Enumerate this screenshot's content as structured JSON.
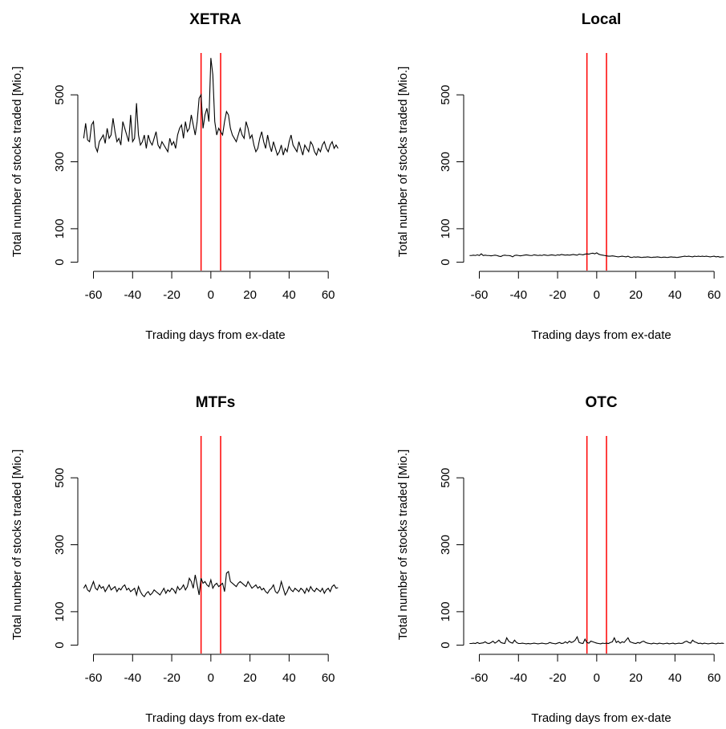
{
  "chart_data": [
    {
      "type": "line",
      "title": "XETRA",
      "x_label": "Trading days from ex-date",
      "y_label": "Total number of stocks traded [Mio.]",
      "x": [
        -65,
        -64,
        -63,
        -62,
        -61,
        -60,
        -59,
        -58,
        -57,
        -56,
        -55,
        -54,
        -53,
        -52,
        -51,
        -50,
        -49,
        -48,
        -47,
        -46,
        -45,
        -44,
        -43,
        -42,
        -41,
        -40,
        -39,
        -38,
        -37,
        -36,
        -35,
        -34,
        -33,
        -32,
        -31,
        -30,
        -29,
        -28,
        -27,
        -26,
        -25,
        -24,
        -23,
        -22,
        -21,
        -20,
        -19,
        -18,
        -17,
        -16,
        -15,
        -14,
        -13,
        -12,
        -11,
        -10,
        -9,
        -8,
        -7,
        -6,
        -5,
        -4,
        -3,
        -2,
        -1,
        0,
        1,
        2,
        3,
        4,
        5,
        6,
        7,
        8,
        9,
        10,
        11,
        12,
        13,
        14,
        15,
        16,
        17,
        18,
        19,
        20,
        21,
        22,
        23,
        24,
        25,
        26,
        27,
        28,
        29,
        30,
        31,
        32,
        33,
        34,
        35,
        36,
        37,
        38,
        39,
        40,
        41,
        42,
        43,
        44,
        45,
        46,
        47,
        48,
        49,
        50,
        51,
        52,
        53,
        54,
        55,
        56,
        57,
        58,
        59,
        60,
        61,
        62,
        63,
        64,
        65
      ],
      "values": [
        370,
        415,
        365,
        360,
        410,
        420,
        345,
        330,
        360,
        370,
        380,
        355,
        400,
        370,
        380,
        430,
        390,
        360,
        370,
        350,
        420,
        400,
        380,
        360,
        440,
        360,
        370,
        475,
        380,
        350,
        360,
        380,
        340,
        380,
        360,
        350,
        370,
        390,
        350,
        340,
        360,
        350,
        340,
        330,
        370,
        350,
        360,
        340,
        380,
        400,
        410,
        370,
        420,
        390,
        400,
        440,
        410,
        380,
        420,
        490,
        500,
        400,
        440,
        460,
        420,
        610,
        560,
        420,
        380,
        400,
        390,
        380,
        420,
        450,
        440,
        400,
        380,
        370,
        360,
        380,
        400,
        380,
        370,
        420,
        400,
        370,
        380,
        350,
        330,
        340,
        370,
        390,
        360,
        340,
        380,
        350,
        330,
        360,
        340,
        320,
        330,
        350,
        320,
        340,
        330,
        360,
        380,
        350,
        340,
        330,
        360,
        340,
        320,
        350,
        340,
        330,
        360,
        350,
        330,
        320,
        340,
        330,
        350,
        360,
        340,
        330,
        350,
        360,
        340,
        350,
        340
      ],
      "color": "#000000",
      "vlines": [
        -5,
        5
      ],
      "vline_color": "#ff0000",
      "xlim": [
        -68,
        71
      ],
      "ylim": [
        -25,
        625
      ],
      "xticks": [
        -60,
        -40,
        -20,
        0,
        20,
        40,
        60
      ],
      "yticks": [
        0,
        100,
        300,
        500
      ]
    },
    {
      "type": "line",
      "title": "Local",
      "x_label": "Trading days from ex-date",
      "y_label": "Total number of stocks traded [Mio.]",
      "x": [
        -65,
        -64,
        -63,
        -62,
        -61,
        -60,
        -59,
        -58,
        -57,
        -56,
        -55,
        -54,
        -53,
        -52,
        -51,
        -50,
        -49,
        -48,
        -47,
        -46,
        -45,
        -44,
        -43,
        -42,
        -41,
        -40,
        -39,
        -38,
        -37,
        -36,
        -35,
        -34,
        -33,
        -32,
        -31,
        -30,
        -29,
        -28,
        -27,
        -26,
        -25,
        -24,
        -23,
        -22,
        -21,
        -20,
        -19,
        -18,
        -17,
        -16,
        -15,
        -14,
        -13,
        -12,
        -11,
        -10,
        -9,
        -8,
        -7,
        -6,
        -5,
        -4,
        -3,
        -2,
        -1,
        0,
        1,
        2,
        3,
        4,
        5,
        6,
        7,
        8,
        9,
        10,
        11,
        12,
        13,
        14,
        15,
        16,
        17,
        18,
        19,
        20,
        21,
        22,
        23,
        24,
        25,
        26,
        27,
        28,
        29,
        30,
        31,
        32,
        33,
        34,
        35,
        36,
        37,
        38,
        39,
        40,
        41,
        42,
        43,
        44,
        45,
        46,
        47,
        48,
        49,
        50,
        51,
        52,
        53,
        54,
        55,
        56,
        57,
        58,
        59,
        60,
        61,
        62,
        63,
        64,
        65
      ],
      "values": [
        20,
        20,
        21,
        20,
        22,
        20,
        25,
        20,
        21,
        20,
        20,
        19,
        20,
        21,
        20,
        18,
        17,
        20,
        21,
        20,
        20,
        19,
        16,
        20,
        21,
        20,
        19,
        20,
        21,
        22,
        21,
        20,
        20,
        22,
        21,
        20,
        21,
        20,
        22,
        21,
        20,
        21,
        22,
        21,
        20,
        22,
        21,
        23,
        22,
        21,
        22,
        21,
        22,
        23,
        22,
        21,
        24,
        23,
        22,
        24,
        25,
        24,
        26,
        27,
        25,
        28,
        24,
        22,
        21,
        20,
        19,
        18,
        18,
        19,
        18,
        17,
        16,
        17,
        18,
        17,
        16,
        18,
        15,
        14,
        16,
        15,
        16,
        15,
        14,
        15,
        15,
        16,
        15,
        14,
        15,
        15,
        16,
        15,
        14,
        15,
        15,
        14,
        15,
        16,
        15,
        15,
        14,
        15,
        16,
        17,
        18,
        17,
        18,
        17,
        16,
        18,
        17,
        18,
        17,
        18,
        17,
        18,
        17,
        16,
        17,
        18,
        16,
        17,
        15,
        16,
        16
      ],
      "color": "#000000",
      "vlines": [
        -5,
        5
      ],
      "vline_color": "#ff0000",
      "xlim": [
        -68,
        71
      ],
      "ylim": [
        -25,
        625
      ],
      "xticks": [
        -60,
        -40,
        -20,
        0,
        20,
        40,
        60
      ],
      "yticks": [
        0,
        100,
        300,
        500
      ]
    },
    {
      "type": "line",
      "title": "MTFs",
      "x_label": "Trading days from ex-date",
      "y_label": "Total number of stocks traded [Mio.]",
      "x": [
        -65,
        -64,
        -63,
        -62,
        -61,
        -60,
        -59,
        -58,
        -57,
        -56,
        -55,
        -54,
        -53,
        -52,
        -51,
        -50,
        -49,
        -48,
        -47,
        -46,
        -45,
        -44,
        -43,
        -42,
        -41,
        -40,
        -39,
        -38,
        -37,
        -36,
        -35,
        -34,
        -33,
        -32,
        -31,
        -30,
        -29,
        -28,
        -27,
        -26,
        -25,
        -24,
        -23,
        -22,
        -21,
        -20,
        -19,
        -18,
        -17,
        -16,
        -15,
        -14,
        -13,
        -12,
        -11,
        -10,
        -9,
        -8,
        -7,
        -6,
        -5,
        -4,
        -3,
        -2,
        -1,
        0,
        1,
        2,
        3,
        4,
        5,
        6,
        7,
        8,
        9,
        10,
        11,
        12,
        13,
        14,
        15,
        16,
        17,
        18,
        19,
        20,
        21,
        22,
        23,
        24,
        25,
        26,
        27,
        28,
        29,
        30,
        31,
        32,
        33,
        34,
        35,
        36,
        37,
        38,
        39,
        40,
        41,
        42,
        43,
        44,
        45,
        46,
        47,
        48,
        49,
        50,
        51,
        52,
        53,
        54,
        55,
        56,
        57,
        58,
        59,
        60,
        61,
        62,
        63,
        64,
        65
      ],
      "values": [
        170,
        180,
        165,
        160,
        175,
        190,
        170,
        165,
        180,
        170,
        175,
        160,
        170,
        180,
        165,
        170,
        175,
        160,
        170,
        165,
        175,
        180,
        165,
        170,
        160,
        165,
        170,
        150,
        175,
        160,
        150,
        145,
        155,
        160,
        150,
        155,
        165,
        160,
        155,
        150,
        160,
        170,
        155,
        165,
        160,
        170,
        165,
        155,
        175,
        165,
        170,
        180,
        165,
        175,
        200,
        190,
        170,
        210,
        180,
        150,
        200,
        185,
        190,
        180,
        175,
        195,
        170,
        180,
        185,
        175,
        180,
        185,
        160,
        215,
        220,
        190,
        185,
        180,
        175,
        185,
        190,
        185,
        180,
        175,
        190,
        180,
        170,
        175,
        180,
        170,
        175,
        165,
        170,
        160,
        155,
        165,
        170,
        180,
        160,
        155,
        165,
        190,
        170,
        150,
        160,
        175,
        165,
        160,
        170,
        165,
        160,
        170,
        165,
        155,
        170,
        160,
        175,
        165,
        160,
        170,
        165,
        160,
        170,
        155,
        165,
        170,
        160,
        175,
        180,
        170,
        172
      ],
      "color": "#000000",
      "vlines": [
        -5,
        5
      ],
      "vline_color": "#ff0000",
      "xlim": [
        -68,
        71
      ],
      "ylim": [
        -25,
        625
      ],
      "xticks": [
        -60,
        -40,
        -20,
        0,
        20,
        40,
        60
      ],
      "yticks": [
        0,
        100,
        300,
        500
      ]
    },
    {
      "type": "line",
      "title": "OTC",
      "x_label": "Trading days from ex-date",
      "y_label": "Total number of stocks traded [Mio.]",
      "x": [
        -65,
        -64,
        -63,
        -62,
        -61,
        -60,
        -59,
        -58,
        -57,
        -56,
        -55,
        -54,
        -53,
        -52,
        -51,
        -50,
        -49,
        -48,
        -47,
        -46,
        -45,
        -44,
        -43,
        -42,
        -41,
        -40,
        -39,
        -38,
        -37,
        -36,
        -35,
        -34,
        -33,
        -32,
        -31,
        -30,
        -29,
        -28,
        -27,
        -26,
        -25,
        -24,
        -23,
        -22,
        -21,
        -20,
        -19,
        -18,
        -17,
        -16,
        -15,
        -14,
        -13,
        -12,
        -11,
        -10,
        -9,
        -8,
        -7,
        -6,
        -5,
        -4,
        -3,
        -2,
        -1,
        0,
        1,
        2,
        3,
        4,
        5,
        6,
        7,
        8,
        9,
        10,
        11,
        12,
        13,
        14,
        15,
        16,
        17,
        18,
        19,
        20,
        21,
        22,
        23,
        24,
        25,
        26,
        27,
        28,
        29,
        30,
        31,
        32,
        33,
        34,
        35,
        36,
        37,
        38,
        39,
        40,
        41,
        42,
        43,
        44,
        45,
        46,
        47,
        48,
        49,
        50,
        51,
        52,
        53,
        54,
        55,
        56,
        57,
        58,
        59,
        60,
        61,
        62,
        63,
        64,
        65
      ],
      "values": [
        5,
        5,
        6,
        5,
        8,
        5,
        6,
        7,
        10,
        6,
        5,
        8,
        12,
        6,
        10,
        15,
        8,
        6,
        5,
        22,
        12,
        8,
        6,
        15,
        8,
        5,
        5,
        6,
        5,
        4,
        5,
        4,
        5,
        6,
        5,
        4,
        5,
        6,
        5,
        4,
        5,
        8,
        6,
        5,
        4,
        6,
        8,
        5,
        6,
        10,
        6,
        12,
        8,
        10,
        15,
        25,
        8,
        6,
        5,
        18,
        8,
        6,
        12,
        10,
        8,
        6,
        5,
        4,
        6,
        5,
        6,
        5,
        8,
        10,
        22,
        8,
        12,
        6,
        10,
        8,
        15,
        22,
        10,
        8,
        6,
        5,
        8,
        6,
        10,
        12,
        8,
        6,
        5,
        4,
        6,
        5,
        4,
        6,
        5,
        4,
        5,
        6,
        4,
        5,
        6,
        4,
        5,
        6,
        5,
        6,
        10,
        12,
        8,
        6,
        15,
        10,
        8,
        5,
        6,
        4,
        6,
        5,
        4,
        5,
        6,
        5,
        4,
        6,
        5,
        6,
        5
      ],
      "color": "#000000",
      "vlines": [
        -5,
        5
      ],
      "vline_color": "#ff0000",
      "xlim": [
        -68,
        71
      ],
      "ylim": [
        -25,
        625
      ],
      "xticks": [
        -60,
        -40,
        -20,
        0,
        20,
        40,
        60
      ],
      "yticks": [
        0,
        100,
        300,
        500
      ]
    }
  ]
}
